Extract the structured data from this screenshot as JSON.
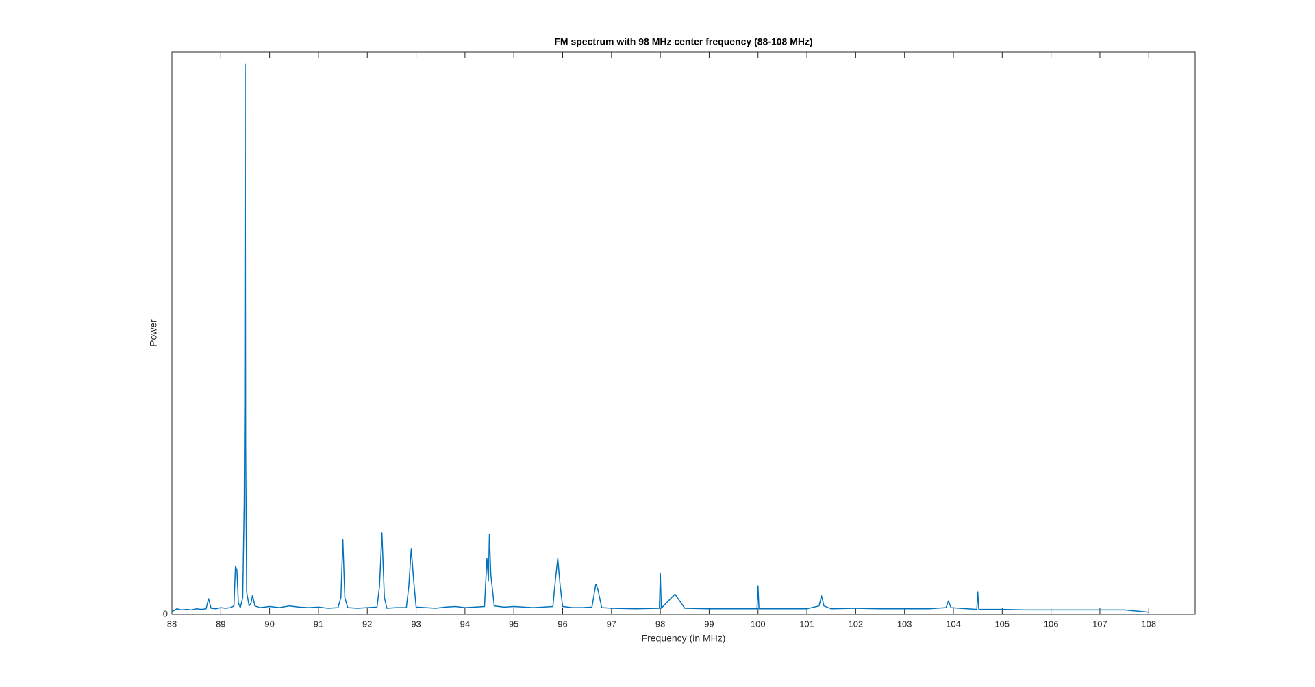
{
  "chart_data": {
    "type": "line",
    "title": "FM spectrum with 98 MHz center frequency (88-108 MHz)",
    "x_label": "Frequency (in MHz)",
    "y_label": "Power",
    "xlim": [
      88,
      108.95
    ],
    "ylim": [
      0,
      1
    ],
    "xticks": [
      88,
      89,
      90,
      91,
      92,
      93,
      94,
      95,
      96,
      97,
      98,
      99,
      100,
      101,
      102,
      103,
      104,
      105,
      106,
      107,
      108
    ],
    "yticks": [
      0
    ],
    "x": [
      88,
      88.1,
      88.2,
      88.3,
      88.4,
      88.5,
      88.6,
      88.7,
      88.75,
      88.8,
      88.9,
      89.0,
      89.1,
      89.2,
      89.27,
      89.3,
      89.33,
      89.36,
      89.4,
      89.45,
      89.48,
      89.49,
      89.5,
      89.51,
      89.53,
      89.58,
      89.62,
      89.65,
      89.7,
      89.8,
      90.0,
      90.2,
      90.4,
      90.6,
      90.8,
      91.0,
      91.2,
      91.4,
      91.46,
      91.5,
      91.54,
      91.6,
      91.8,
      92.0,
      92.2,
      92.25,
      92.3,
      92.35,
      92.4,
      92.6,
      92.8,
      92.85,
      92.9,
      92.95,
      93.0,
      93.2,
      93.4,
      93.6,
      93.8,
      94.0,
      94.2,
      94.4,
      94.45,
      94.48,
      94.5,
      94.53,
      94.6,
      94.8,
      95.0,
      95.2,
      95.4,
      95.6,
      95.8,
      95.85,
      95.9,
      95.95,
      96.0,
      96.2,
      96.4,
      96.6,
      96.68,
      96.72,
      96.8,
      97.0,
      97.5,
      97.98,
      98.0,
      98.02,
      98.3,
      98.5,
      99.0,
      99.5,
      99.98,
      100.0,
      100.02,
      100.5,
      101.0,
      101.25,
      101.3,
      101.35,
      101.5,
      102.0,
      102.5,
      103.0,
      103.5,
      103.85,
      103.9,
      103.95,
      104.48,
      104.5,
      104.52,
      105.0,
      105.5,
      106.0,
      106.5,
      107.0,
      107.5,
      108
    ],
    "series": [
      {
        "color": "#0072bd",
        "values": [
          0.005,
          0.01,
          0.008,
          0.009,
          0.008,
          0.01,
          0.009,
          0.01,
          0.028,
          0.011,
          0.01,
          0.012,
          0.011,
          0.012,
          0.015,
          0.085,
          0.08,
          0.02,
          0.012,
          0.03,
          0.2,
          0.376,
          0.979,
          0.3,
          0.04,
          0.015,
          0.02,
          0.034,
          0.015,
          0.012,
          0.014,
          0.012,
          0.015,
          0.013,
          0.012,
          0.013,
          0.011,
          0.012,
          0.03,
          0.133,
          0.03,
          0.012,
          0.011,
          0.012,
          0.013,
          0.05,
          0.145,
          0.03,
          0.011,
          0.012,
          0.012,
          0.05,
          0.117,
          0.06,
          0.013,
          0.012,
          0.011,
          0.013,
          0.014,
          0.012,
          0.013,
          0.014,
          0.1,
          0.06,
          0.142,
          0.07,
          0.015,
          0.013,
          0.014,
          0.013,
          0.012,
          0.013,
          0.014,
          0.06,
          0.1,
          0.05,
          0.014,
          0.012,
          0.012,
          0.013,
          0.054,
          0.045,
          0.012,
          0.011,
          0.01,
          0.011,
          0.073,
          0.011,
          0.036,
          0.011,
          0.01,
          0.01,
          0.01,
          0.051,
          0.01,
          0.01,
          0.01,
          0.015,
          0.033,
          0.015,
          0.01,
          0.011,
          0.01,
          0.01,
          0.01,
          0.012,
          0.024,
          0.012,
          0.009,
          0.04,
          0.009,
          0.009,
          0.008,
          0.008,
          0.008,
          0.008,
          0.008,
          0.004
        ]
      }
    ]
  }
}
